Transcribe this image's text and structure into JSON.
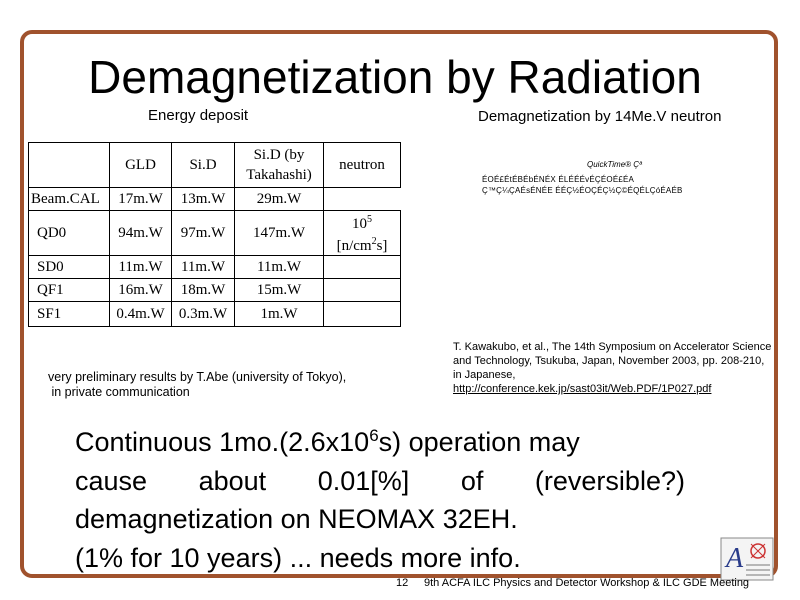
{
  "title": "Demagnetization by Radiation",
  "energy_label": "Energy deposit",
  "neutron_label": "Demagnetization by 14Me.V neutron",
  "table": {
    "headers": [
      "",
      "GLD",
      "Si.D",
      "Si.D (by",
      "Takahashi)",
      "neutron"
    ],
    "rows": [
      {
        "name": "Beam.CAL",
        "gld": "17m.W",
        "sid": "13m.W",
        "sid_t": "29m.W"
      },
      {
        "name": "QD0",
        "gld": "94m.W",
        "sid": "97m.W",
        "sid_t": "147m.W"
      },
      {
        "name": "SD0",
        "gld": "11m.W",
        "sid": "11m.W",
        "sid_t": "11m.W"
      },
      {
        "name": "QF1",
        "gld": "16m.W",
        "sid": "18m.W",
        "sid_t": "15m.W"
      },
      {
        "name": "SF1",
        "gld": "0.4m.W",
        "sid": "0.3m.W",
        "sid_t": "1m.W"
      }
    ],
    "neutron_value_base": "10",
    "neutron_value_exp": "5",
    "neutron_unit_a": "[n/cm",
    "neutron_unit_exp": "2",
    "neutron_unit_b": "s]"
  },
  "screen_text": {
    "line1": "QuickTime® Çª",
    "line2": "ÉOÉ£ÉtÉBÉbÉNÉX ÉLÉÉÉvÉÇÉOÉ£ÉA",
    "line3": "Ç™Ç¼ÇAÉsÉNÉE ÉÉÇ½ÉOÇÉÇ½Ç©ÉQÉLÇóÉAÉB"
  },
  "reference": {
    "text": "T. Kawakubo, et al., The 14th Symposium on Accelerator Science and Technology, Tsukuba, Japan, November 2003, pp. 208-210, in Japanese,",
    "link": "http://conference.kek.jp/sast03it/Web.PDF/1P027.pdf"
  },
  "note": {
    "line1": "very preliminary results by T.Abe (university of Tokyo),",
    "line2": "in private communication"
  },
  "main_text": {
    "l1a": "Continuous 1mo.(2.6x10",
    "l1exp": "6",
    "l1b": "s) operation may",
    "l2": [
      "cause",
      "about",
      "0.01[%]",
      "of",
      "(reversible?)"
    ],
    "l3": "demagnetization on NEOMAX 32EH.",
    "l4": "(1% for 10 years)  ... needs more info."
  },
  "footer": {
    "page": "12",
    "event": "9th ACFA ILC Physics and Detector Workshop & ILC GDE Meeting"
  },
  "colors": {
    "frame": "#a0522d",
    "text": "#000000"
  }
}
